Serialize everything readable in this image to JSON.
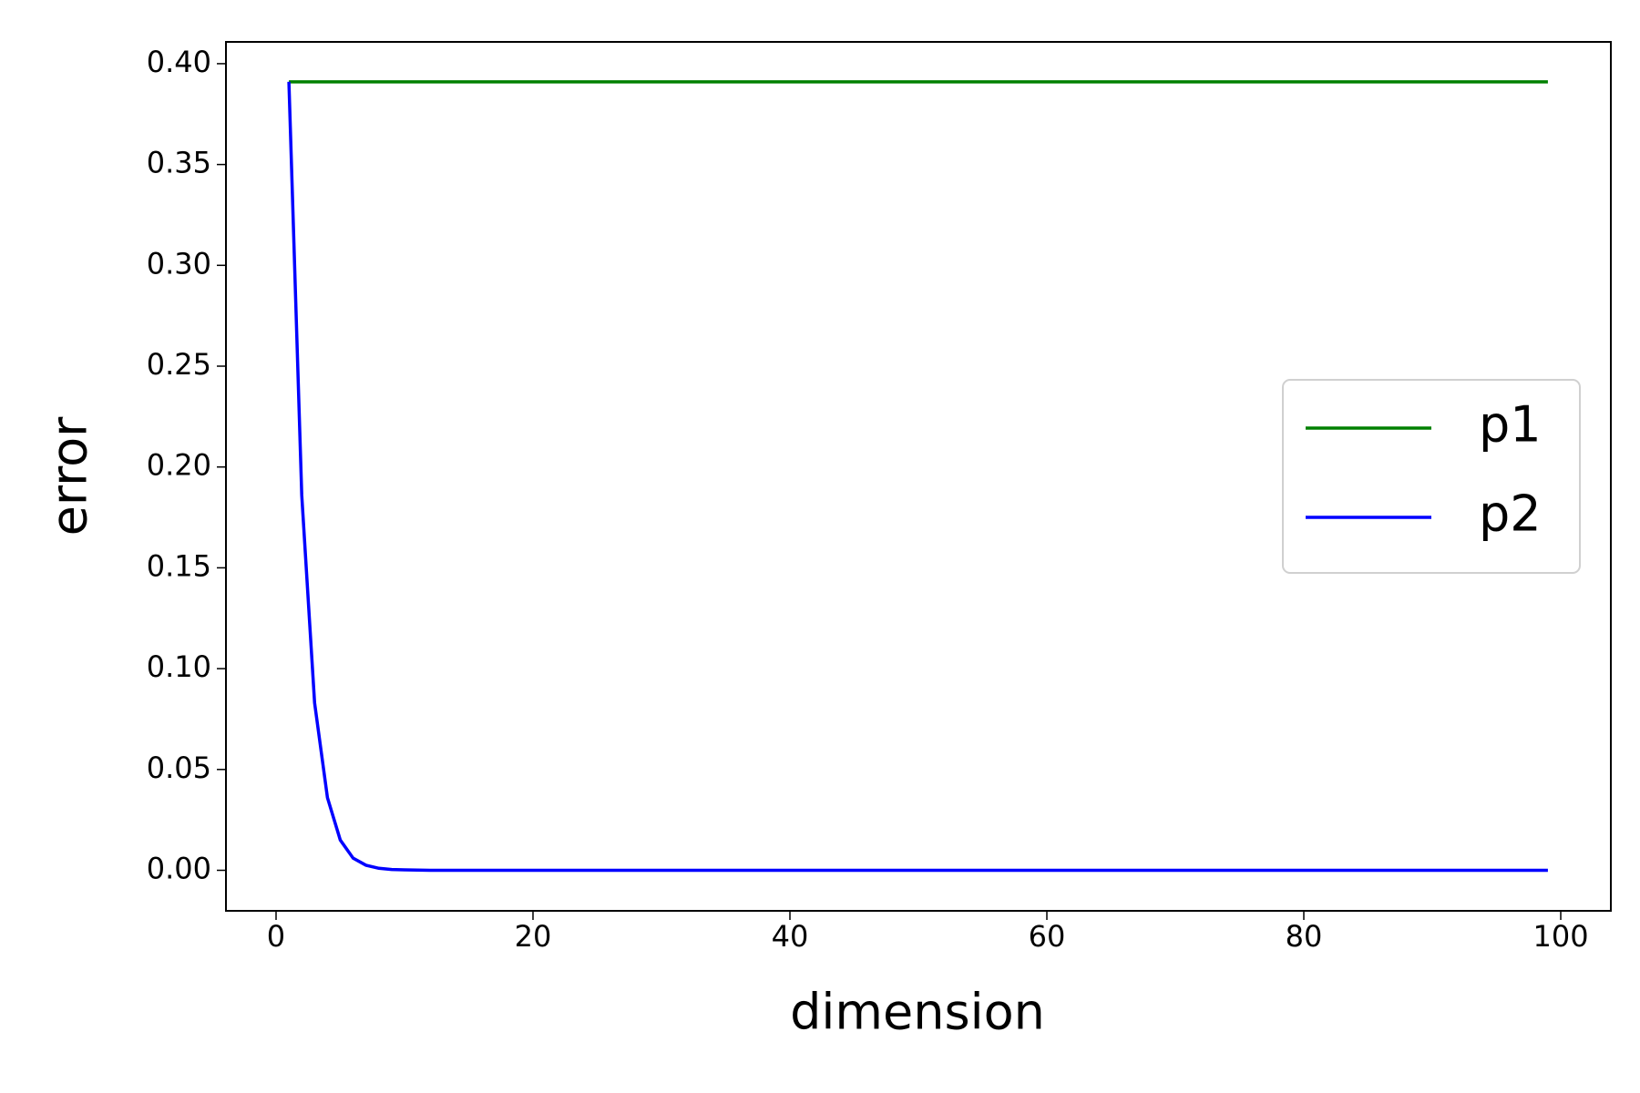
{
  "chart_data": {
    "type": "line",
    "x_label": "dimension",
    "y_label": "error",
    "x": [
      1,
      2,
      3,
      4,
      5,
      6,
      7,
      8,
      9,
      10,
      11,
      12,
      13,
      14,
      15,
      16,
      17,
      18,
      19,
      20,
      21,
      22,
      23,
      24,
      25,
      26,
      27,
      28,
      29,
      30,
      31,
      32,
      33,
      34,
      35,
      36,
      37,
      38,
      39,
      40,
      41,
      42,
      43,
      44,
      45,
      46,
      47,
      48,
      49,
      50,
      51,
      52,
      53,
      54,
      55,
      56,
      57,
      58,
      59,
      60,
      61,
      62,
      63,
      64,
      65,
      66,
      67,
      68,
      69,
      70,
      71,
      72,
      73,
      74,
      75,
      76,
      77,
      78,
      79,
      80,
      81,
      82,
      83,
      84,
      85,
      86,
      87,
      88,
      89,
      90,
      91,
      92,
      93,
      94,
      95,
      96,
      97,
      98,
      99
    ],
    "series": [
      {
        "name": "p1",
        "color": "#008000",
        "values": [
          0.391,
          0.391,
          0.391,
          0.391,
          0.391,
          0.391,
          0.391,
          0.391,
          0.391,
          0.391,
          0.391,
          0.391,
          0.391,
          0.391,
          0.391,
          0.391,
          0.391,
          0.391,
          0.391,
          0.391,
          0.391,
          0.391,
          0.391,
          0.391,
          0.391,
          0.391,
          0.391,
          0.391,
          0.391,
          0.391,
          0.391,
          0.391,
          0.391,
          0.391,
          0.391,
          0.391,
          0.391,
          0.391,
          0.391,
          0.391,
          0.391,
          0.391,
          0.391,
          0.391,
          0.391,
          0.391,
          0.391,
          0.391,
          0.391,
          0.391,
          0.391,
          0.391,
          0.391,
          0.391,
          0.391,
          0.391,
          0.391,
          0.391,
          0.391,
          0.391,
          0.391,
          0.391,
          0.391,
          0.391,
          0.391,
          0.391,
          0.391,
          0.391,
          0.391,
          0.391,
          0.391,
          0.391,
          0.391,
          0.391,
          0.391,
          0.391,
          0.391,
          0.391,
          0.391,
          0.391,
          0.391,
          0.391,
          0.391,
          0.391,
          0.391,
          0.391,
          0.391,
          0.391,
          0.391,
          0.391,
          0.391,
          0.391,
          0.391,
          0.391,
          0.391,
          0.391,
          0.391,
          0.391,
          0.391
        ]
      },
      {
        "name": "p2",
        "color": "#0000ff",
        "values": [
          0.391,
          0.186,
          0.083,
          0.036,
          0.015,
          0.006,
          0.0025,
          0.001,
          0.0004,
          0.0002,
          0.0001,
          0,
          0,
          0,
          0,
          0,
          0,
          0,
          0,
          0,
          0,
          0,
          0,
          0,
          0,
          0,
          0,
          0,
          0,
          0,
          0,
          0,
          0,
          0,
          0,
          0,
          0,
          0,
          0,
          0,
          0,
          0,
          0,
          0,
          0,
          0,
          0,
          0,
          0,
          0,
          0,
          0,
          0,
          0,
          0,
          0,
          0,
          0,
          0,
          0,
          0,
          0,
          0,
          0,
          0,
          0,
          0,
          0,
          0,
          0,
          0,
          0,
          0,
          0,
          0,
          0,
          0,
          0,
          0,
          0,
          0,
          0,
          0,
          0,
          0,
          0,
          0,
          0,
          0,
          0,
          0,
          0,
          0,
          0,
          0,
          0,
          0,
          0,
          0
        ]
      }
    ],
    "xlim": [
      -3.9,
      103.9
    ],
    "xticks": [
      0,
      20,
      40,
      60,
      80,
      100
    ],
    "ylim": [
      -0.0201,
      0.4108
    ],
    "yticks": [
      {
        "value": 0,
        "label": "0.00"
      },
      {
        "value": 0.05,
        "label": "0.05"
      },
      {
        "value": 0.1,
        "label": "0.10"
      },
      {
        "value": 0.15,
        "label": "0.15"
      },
      {
        "value": 0.2,
        "label": "0.20"
      },
      {
        "value": 0.25,
        "label": "0.25"
      },
      {
        "value": 0.3,
        "label": "0.30"
      },
      {
        "value": 0.35,
        "label": "0.35"
      },
      {
        "value": 0.4,
        "label": "0.40"
      }
    ],
    "legend": "center right"
  }
}
